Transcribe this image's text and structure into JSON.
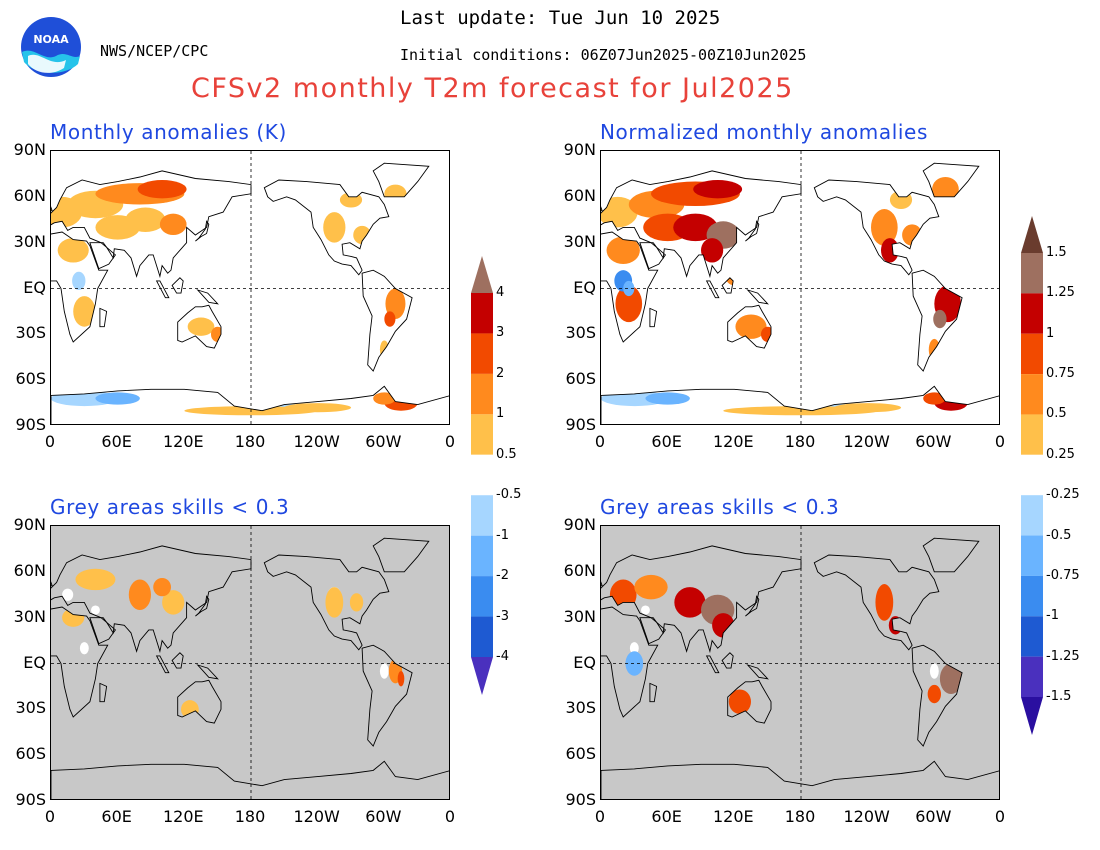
{
  "header": {
    "last_update": "Last update: Tue Jun 10 2025",
    "agency": "NWS/NCEP/CPC",
    "initial_conditions": "Initial conditions: 06Z07Jun2025-00Z10Jun2025",
    "title": "CFSv2 monthly T2m forecast for Jul2025",
    "logo_text": "NOAA"
  },
  "axes": {
    "lat_labels": [
      "90N",
      "60N",
      "30N",
      "EQ",
      "30S",
      "60S",
      "90S"
    ],
    "lon_labels": [
      "0",
      "60E",
      "120E",
      "180",
      "120W",
      "60W",
      "0"
    ]
  },
  "panels": [
    {
      "id": "anom",
      "title": "Monthly anomalies (K)",
      "masked": false,
      "colorbar": "cb1"
    },
    {
      "id": "norm",
      "title": "Normalized monthly anomalies",
      "masked": false,
      "colorbar": "cb2"
    },
    {
      "id": "anom_skill",
      "title": "Grey areas skills < 0.3",
      "masked": true,
      "colorbar": "cb1"
    },
    {
      "id": "norm_skill",
      "title": "Grey areas skills < 0.3",
      "masked": true,
      "colorbar": "cb2"
    }
  ],
  "colorbars": {
    "cb1": {
      "labels": [
        "4",
        "3",
        "2",
        "1",
        "0.5",
        "-0.5",
        "-1",
        "-2",
        "-3",
        "-4"
      ]
    },
    "cb2": {
      "labels": [
        "1.5",
        "1.25",
        "1",
        "0.75",
        "0.5",
        "0.25",
        "-0.25",
        "-0.5",
        "-0.75",
        "-1",
        "-1.25",
        "-1.5"
      ]
    }
  },
  "colors": {
    "title": "#e8423a",
    "panel_title": "#1f48e0",
    "skill_mask": "#c8c8c8",
    "pos": [
      "#ffc04a",
      "#ff8a1e",
      "#f24a00",
      "#c40000",
      "#9e7060",
      "#6a3c2e"
    ],
    "neg": [
      "#a6d6ff",
      "#6ab4ff",
      "#3a8cf0",
      "#1e5ad2",
      "#4a30be",
      "#2a0fa0"
    ]
  }
}
